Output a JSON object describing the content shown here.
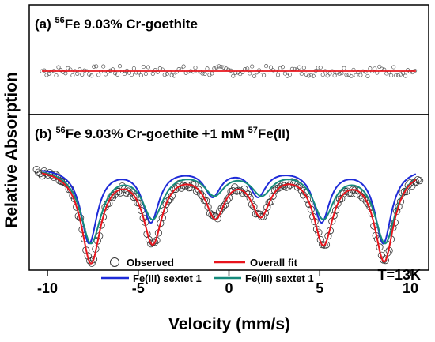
{
  "chart_data": {
    "type": "scatter",
    "title": "",
    "xlabel": "Velocity (mm/s)",
    "ylabel": "Relative Absorption",
    "xlim": [
      -11,
      11
    ],
    "x_ticks": [
      -10,
      -5,
      0,
      5,
      10
    ],
    "x_tick_labels": [
      "-10",
      "-5",
      "0",
      "5",
      "10"
    ],
    "annotation": "T=13K",
    "panels": [
      {
        "id": "a",
        "label_prefix": "(a) ",
        "isotope": "56",
        "label_text": "Fe 9.03% Cr-goethite",
        "ylim": [
          -1,
          1
        ],
        "series": [
          {
            "type": "scatter",
            "marker": "open-circle",
            "color": "#555555",
            "x_range": [
              -10.3,
              10.3
            ],
            "center": 0,
            "noise": 0.13
          },
          {
            "type": "line",
            "color": "#e8141c",
            "x": [
              -10.3,
              10.3
            ],
            "y": [
              0,
              0
            ]
          }
        ]
      },
      {
        "id": "b",
        "label_prefix": "(b) ",
        "isotope": "56",
        "label_text": "Fe 9.03% Cr-goethite +1 mM ",
        "isotope2": "57",
        "label_text2": "Fe(II)",
        "ylim": [
          0,
          1.05
        ],
        "baseline": 1.0,
        "series": [
          {
            "name": "Fe(III) sextet 1",
            "type": "line",
            "color": "#1e2bd8",
            "positions": [
              -7.7,
              -4.3,
              -0.9,
              1.6,
              5.1,
              8.5
            ],
            "depths": [
              0.78,
              0.55,
              0.28,
              0.28,
              0.55,
              0.78
            ],
            "width": 0.55,
            "x_range": [
              -10.3,
              10.3
            ]
          },
          {
            "name": "Fe(III) sextet 1",
            "type": "line",
            "color": "#158a7b",
            "positions": [
              -7.6,
              -4.2,
              -0.8,
              1.8,
              5.2,
              8.6
            ],
            "depths": [
              0.77,
              0.5,
              0.25,
              0.25,
              0.5,
              0.77
            ],
            "width": 0.7,
            "x_range": [
              -10.3,
              10.3
            ]
          },
          {
            "name": "Overall fit",
            "type": "line",
            "color": "#e8141c",
            "positions": [
              -7.6,
              -4.2,
              -0.75,
              1.75,
              5.2,
              8.55
            ],
            "depths": [
              0.97,
              0.75,
              0.47,
              0.45,
              0.76,
              0.95
            ],
            "width": 0.65,
            "x_range": [
              -10.3,
              10.3
            ]
          },
          {
            "name": "Observed",
            "type": "scatter",
            "marker": "open-circle",
            "color": "#333333",
            "positions": [
              -7.6,
              -4.2,
              -0.75,
              1.75,
              5.2,
              8.55
            ],
            "depths": [
              0.97,
              0.75,
              0.47,
              0.45,
              0.76,
              0.95
            ],
            "width": 0.65,
            "x_range": [
              -10.6,
              10.6
            ],
            "noise": 0.035
          }
        ]
      }
    ],
    "legend": {
      "placement": "bottom-center",
      "entries": [
        {
          "label": "Observed",
          "marker": "open-circle",
          "color": "#333333"
        },
        {
          "label": "Overall fit",
          "marker": "line",
          "color": "#e8141c"
        },
        {
          "label": "Fe(III) sextet 1",
          "marker": "line",
          "color": "#1e2bd8"
        },
        {
          "label": "Fe(III) sextet 1",
          "marker": "line",
          "color": "#158a7b"
        }
      ]
    }
  }
}
